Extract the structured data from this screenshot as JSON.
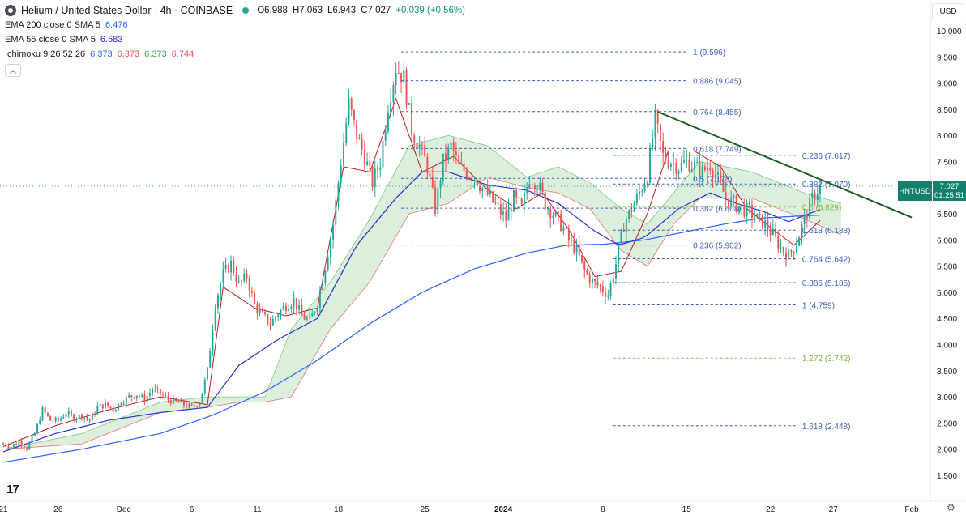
{
  "header": {
    "symbol_title": "Helium / United States Dollar · 4h · COINBASE",
    "ohlc": {
      "o": "O6.988",
      "h": "H7.063",
      "l": "L6.943",
      "c": "C7.027",
      "chg": "+0.039 (+0.56%)"
    },
    "currency": "USD"
  },
  "indicators": [
    {
      "name": "EMA 200 close 0 SMA 5",
      "value": "6.476"
    },
    {
      "name": "EMA 55 close 0 SMA 5",
      "value": "6.583"
    },
    {
      "name": "Ichimoku 9 26 52 26",
      "v1": "6.373",
      "v2": "6.373",
      "v3": "6.373",
      "v4": "6.744"
    }
  ],
  "price_tag": {
    "symbol": "HNTUSD",
    "price": "7.027",
    "countdown": "01:25:51"
  },
  "colors": {
    "up": "#26a69a",
    "down": "#ef5350",
    "ema200": "#2962ff",
    "ema55": "#2a2ed0",
    "kumo_bull": "#a5d6a7",
    "kumo_bear": "#ef9a9a",
    "fib": "#3c5fbf",
    "trend": "#1b5e20"
  },
  "chart_data": {
    "type": "candlestick",
    "y_axis_ticks": [
      "10.000",
      "9.500",
      "9.000",
      "8.500",
      "8.000",
      "7.500",
      "7.000",
      "6.500",
      "6.000",
      "5.500",
      "5.000",
      "4.500",
      "4.000",
      "3.500",
      "3.000",
      "2.500",
      "2.000",
      "1.500"
    ],
    "ylim": [
      1.1,
      10.35
    ],
    "x_axis_labels": [
      "21",
      "26",
      "Dec",
      "6",
      "11",
      "18",
      "25",
      "2024",
      "8",
      "15",
      "22",
      "27",
      "Feb"
    ],
    "fib_upper": [
      {
        "label": "1 (9.596)",
        "value": 9.596
      },
      {
        "label": "0.886 (9.045)",
        "value": 9.045
      },
      {
        "label": "0.764 (8.455)",
        "value": 8.455
      },
      {
        "label": "0.618 (7.749)",
        "value": 7.749
      },
      {
        "label": "0.5 (7.178)",
        "value": 7.178
      },
      {
        "label": "0.382 (6.608)",
        "value": 6.608
      },
      {
        "label": "0.236 (5.902)",
        "value": 5.902
      }
    ],
    "fib_lower": [
      {
        "label": "0.236 (7.617)",
        "value": 7.617
      },
      {
        "label": "0.382 (7.070)",
        "value": 7.07
      },
      {
        "label": "0.5 (6.629)",
        "value": 6.629
      },
      {
        "label": "0.618 (6.188)",
        "value": 6.188
      },
      {
        "label": "0.764 (5.642)",
        "value": 5.642
      },
      {
        "label": "0.886 (5.185)",
        "value": 5.185
      },
      {
        "label": "1 (4.759)",
        "value": 4.759
      },
      {
        "label": "1.272 (3.742)",
        "value": 3.742
      },
      {
        "label": "1.618 (2.448)",
        "value": 2.448
      }
    ],
    "trendline": {
      "from": {
        "x": "Jan 12",
        "y": 8.45
      },
      "to": {
        "x": "Jan 29",
        "y": 6.43
      }
    },
    "close_path": [
      [
        0,
        2.1
      ],
      [
        3,
        2.05
      ],
      [
        6,
        2.15
      ],
      [
        9,
        2.02
      ],
      [
        12,
        2.3
      ],
      [
        15,
        2.75
      ],
      [
        18,
        2.55
      ],
      [
        21,
        2.55
      ],
      [
        24,
        2.7
      ],
      [
        27,
        2.6
      ],
      [
        30,
        2.65
      ],
      [
        33,
        2.55
      ],
      [
        36,
        2.8
      ],
      [
        39,
        2.85
      ],
      [
        42,
        2.75
      ],
      [
        45,
        2.9
      ],
      [
        48,
        3.0
      ],
      [
        51,
        3.05
      ],
      [
        54,
        2.95
      ],
      [
        57,
        3.15
      ],
      [
        60,
        3.05
      ],
      [
        63,
        2.95
      ],
      [
        66,
        2.9
      ],
      [
        69,
        2.85
      ],
      [
        72,
        2.8
      ],
      [
        75,
        2.9
      ],
      [
        78,
        3.5
      ],
      [
        81,
        4.8
      ],
      [
        84,
        5.35
      ],
      [
        87,
        5.55
      ],
      [
        90,
        5.15
      ],
      [
        93,
        5.3
      ],
      [
        96,
        4.75
      ],
      [
        99,
        4.55
      ],
      [
        102,
        4.4
      ],
      [
        105,
        4.6
      ],
      [
        108,
        4.75
      ],
      [
        111,
        4.85
      ],
      [
        114,
        4.55
      ],
      [
        117,
        4.45
      ],
      [
        120,
        4.8
      ],
      [
        123,
        5.5
      ],
      [
        126,
        6.3
      ],
      [
        129,
        7.5
      ],
      [
        132,
        8.6
      ],
      [
        135,
        8.0
      ],
      [
        138,
        7.6
      ],
      [
        141,
        7.1
      ],
      [
        144,
        7.5
      ],
      [
        147,
        8.6
      ],
      [
        150,
        9.3
      ],
      [
        153,
        9.1
      ],
      [
        156,
        8.1
      ],
      [
        159,
        7.8
      ],
      [
        162,
        7.4
      ],
      [
        165,
        6.6
      ],
      [
        168,
        7.5
      ],
      [
        171,
        7.8
      ],
      [
        174,
        7.4
      ],
      [
        177,
        7.3
      ],
      [
        180,
        7.2
      ],
      [
        183,
        7.0
      ],
      [
        186,
        6.8
      ],
      [
        189,
        6.6
      ],
      [
        192,
        6.4
      ],
      [
        195,
        6.8
      ],
      [
        198,
        6.6
      ],
      [
        201,
        7.2
      ],
      [
        204,
        7.1
      ],
      [
        207,
        6.7
      ],
      [
        210,
        6.5
      ],
      [
        213,
        6.3
      ],
      [
        216,
        6.0
      ],
      [
        219,
        5.8
      ],
      [
        222,
        5.4
      ],
      [
        225,
        5.2
      ],
      [
        228,
        5.1
      ],
      [
        231,
        4.95
      ],
      [
        234,
        5.55
      ],
      [
        237,
        6.3
      ],
      [
        240,
        6.6
      ],
      [
        243,
        6.9
      ],
      [
        246,
        7.25
      ],
      [
        249,
        8.3
      ],
      [
        252,
        7.6
      ],
      [
        255,
        7.5
      ],
      [
        258,
        7.4
      ],
      [
        261,
        7.5
      ],
      [
        264,
        7.4
      ],
      [
        267,
        7.3
      ],
      [
        270,
        7.45
      ],
      [
        273,
        7.15
      ],
      [
        276,
        6.8
      ],
      [
        279,
        6.7
      ],
      [
        282,
        6.6
      ],
      [
        285,
        6.55
      ],
      [
        288,
        6.4
      ],
      [
        291,
        6.3
      ],
      [
        294,
        6.1
      ],
      [
        297,
        5.85
      ],
      [
        300,
        5.7
      ],
      [
        303,
        5.95
      ],
      [
        306,
        6.4
      ],
      [
        309,
        6.8
      ],
      [
        312,
        7.027
      ]
    ],
    "ema200_path": [
      [
        0,
        1.75
      ],
      [
        30,
        2.0
      ],
      [
        60,
        2.3
      ],
      [
        80,
        2.65
      ],
      [
        100,
        3.1
      ],
      [
        120,
        3.7
      ],
      [
        140,
        4.4
      ],
      [
        160,
        5.0
      ],
      [
        180,
        5.45
      ],
      [
        200,
        5.75
      ],
      [
        215,
        5.9
      ],
      [
        230,
        5.92
      ],
      [
        245,
        6.0
      ],
      [
        260,
        6.15
      ],
      [
        275,
        6.3
      ],
      [
        290,
        6.42
      ],
      [
        305,
        6.46
      ],
      [
        312,
        6.476
      ]
    ],
    "ema55_path": [
      [
        0,
        1.95
      ],
      [
        20,
        2.3
      ],
      [
        40,
        2.55
      ],
      [
        60,
        2.7
      ],
      [
        78,
        2.8
      ],
      [
        90,
        3.6
      ],
      [
        105,
        4.1
      ],
      [
        120,
        4.5
      ],
      [
        135,
        5.9
      ],
      [
        150,
        6.8
      ],
      [
        160,
        7.3
      ],
      [
        170,
        7.3
      ],
      [
        185,
        7.05
      ],
      [
        200,
        6.95
      ],
      [
        212,
        6.7
      ],
      [
        225,
        6.2
      ],
      [
        235,
        5.9
      ],
      [
        245,
        6.05
      ],
      [
        258,
        6.6
      ],
      [
        270,
        6.9
      ],
      [
        280,
        6.7
      ],
      [
        290,
        6.55
      ],
      [
        300,
        6.35
      ],
      [
        312,
        6.583
      ]
    ],
    "cloud_path": [
      [
        0,
        2.0,
        2.0
      ],
      [
        30,
        2.3,
        2.1
      ],
      [
        60,
        2.9,
        2.7
      ],
      [
        78,
        3.0,
        2.8
      ],
      [
        90,
        3.0,
        2.9
      ],
      [
        100,
        3.0,
        2.9
      ],
      [
        110,
        4.3,
        3.0
      ],
      [
        125,
        5.2,
        4.3
      ],
      [
        140,
        6.4,
        5.2
      ],
      [
        155,
        7.8,
        6.5
      ],
      [
        170,
        8.0,
        6.7
      ],
      [
        185,
        7.8,
        7.2
      ],
      [
        200,
        7.2,
        7.0
      ],
      [
        212,
        7.4,
        6.9
      ],
      [
        224,
        7.1,
        6.6
      ],
      [
        236,
        6.6,
        5.8
      ],
      [
        246,
        6.3,
        5.5
      ],
      [
        256,
        6.9,
        6.3
      ],
      [
        266,
        7.5,
        6.8
      ],
      [
        276,
        7.4,
        6.8
      ],
      [
        286,
        7.3,
        6.8
      ],
      [
        296,
        7.1,
        6.6
      ],
      [
        306,
        6.9,
        6.4
      ],
      [
        320,
        6.7,
        6.1
      ]
    ],
    "tenkan_path": [
      [
        0,
        2.05
      ],
      [
        20,
        2.45
      ],
      [
        40,
        2.75
      ],
      [
        60,
        3.0
      ],
      [
        78,
        2.85
      ],
      [
        84,
        5.1
      ],
      [
        96,
        4.7
      ],
      [
        108,
        4.55
      ],
      [
        120,
        4.7
      ],
      [
        130,
        7.4
      ],
      [
        140,
        7.3
      ],
      [
        150,
        8.7
      ],
      [
        160,
        7.3
      ],
      [
        172,
        7.6
      ],
      [
        184,
        7.0
      ],
      [
        196,
        6.6
      ],
      [
        206,
        6.9
      ],
      [
        216,
        6.2
      ],
      [
        226,
        5.3
      ],
      [
        236,
        5.4
      ],
      [
        246,
        6.5
      ],
      [
        254,
        7.7
      ],
      [
        264,
        7.7
      ],
      [
        274,
        7.4
      ],
      [
        284,
        6.6
      ],
      [
        294,
        6.2
      ],
      [
        302,
        5.9
      ],
      [
        312,
        6.373
      ]
    ]
  }
}
